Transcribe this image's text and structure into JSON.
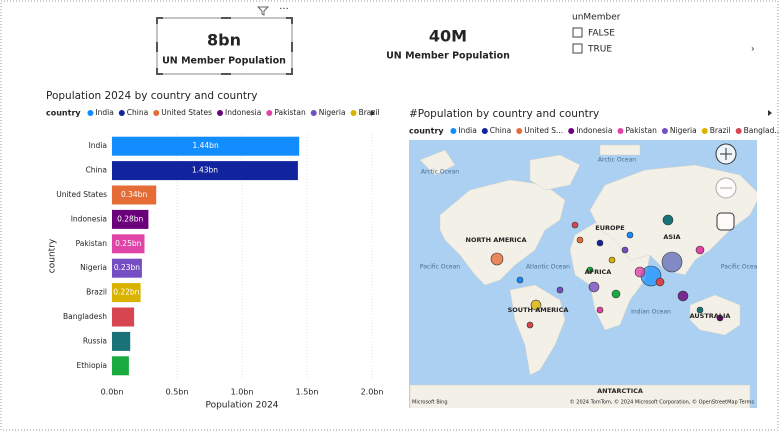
{
  "cards": [
    {
      "value": "8bn",
      "label": "UN Member Population"
    },
    {
      "value": "40M",
      "label": "UN Member Population"
    }
  ],
  "slicer": {
    "title": "unMember",
    "options": [
      "FALSE",
      "TRUE"
    ]
  },
  "chart_data": {
    "type": "bar",
    "orientation": "horizontal",
    "title": "Population 2024 by country and country",
    "legend_title": "country",
    "x_label": "Population 2024",
    "y_label": "country",
    "categories": [
      "India",
      "China",
      "United States",
      "Indonesia",
      "Pakistan",
      "Nigeria",
      "Brazil",
      "Bangladesh",
      "Russia",
      "Ethiopia"
    ],
    "values": [
      1.44,
      1.43,
      0.34,
      0.28,
      0.25,
      0.23,
      0.22,
      0.17,
      0.14,
      0.13
    ],
    "value_labels": [
      "1.44bn",
      "1.43bn",
      "0.34bn",
      "0.28bn",
      "0.25bn",
      "0.23bn",
      "0.22bn",
      null,
      null,
      null
    ],
    "colors": [
      "#118dff",
      "#12239e",
      "#e66c37",
      "#6b007b",
      "#e044a7",
      "#744ec2",
      "#d9b300",
      "#d64550",
      "#197278",
      "#1aab40"
    ],
    "legend_count": 7,
    "xlim": [
      0,
      2
    ],
    "xticks": [
      {
        "value": 0,
        "label": "0.0bn"
      },
      {
        "value": 0.5,
        "label": "0.5bn"
      },
      {
        "value": 1,
        "label": "1.0bn"
      },
      {
        "value": 1.5,
        "label": "1.5bn"
      },
      {
        "value": 2,
        "label": "2.0bn"
      }
    ],
    "grid": true
  },
  "map": {
    "title": "#Population by country and country",
    "legend_title": "country",
    "legend": [
      "India",
      "China",
      "United S...",
      "Indonesia",
      "Pakistan",
      "Nigeria",
      "Brazil",
      "Banglad..."
    ],
    "legend_colors": [
      "#118dff",
      "#12239e",
      "#e66c37",
      "#6b007b",
      "#e044a7",
      "#744ec2",
      "#d9b300",
      "#d64550"
    ],
    "labels": [
      "Arctic Ocean",
      "Arctic Ocean",
      "NORTH AMERICA",
      "EUROPE",
      "ASIA",
      "Pacific Ocean",
      "Atlantic Ocean",
      "AFRICA",
      "Pacific Ocean",
      "Indian Ocean",
      "SOUTH AMERICA",
      "AUSTRALIA",
      "ANTARCTICA"
    ],
    "copyright": "© 2024 TomTom, © 2024 Microsoft Corporation, © OpenStreetMap Terms",
    "brand": "Microsoft Bing"
  }
}
